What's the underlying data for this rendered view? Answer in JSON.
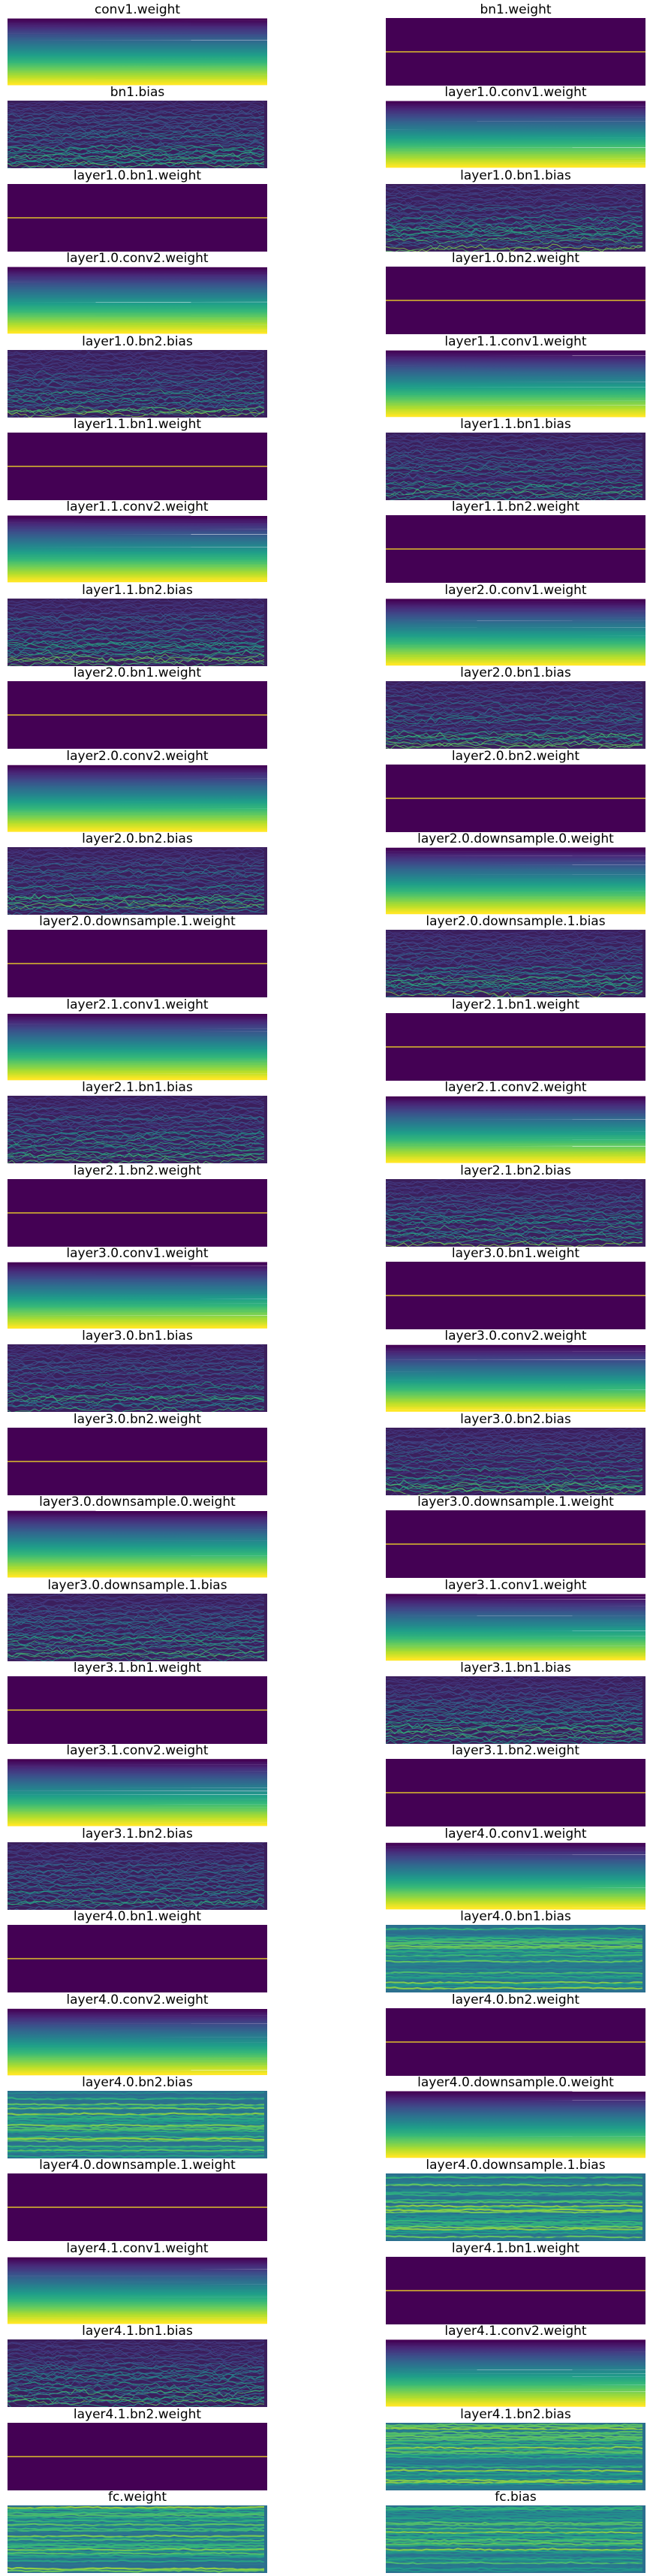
{
  "colors": {
    "flat_background": "#440154",
    "flat_line": "#fde725",
    "noise_background": "#3b1f5c",
    "colormap": "viridis"
  },
  "chart_data": [
    {
      "type": "line",
      "title": "conv1.weight",
      "pattern": "gradient"
    },
    {
      "type": "line",
      "title": "bn1.weight",
      "pattern": "flat"
    },
    {
      "type": "line",
      "title": "bn1.bias",
      "pattern": "noise"
    },
    {
      "type": "line",
      "title": "layer1.0.conv1.weight",
      "pattern": "gradient"
    },
    {
      "type": "line",
      "title": "layer1.0.bn1.weight",
      "pattern": "flat"
    },
    {
      "type": "line",
      "title": "layer1.0.bn1.bias",
      "pattern": "noise"
    },
    {
      "type": "line",
      "title": "layer1.0.conv2.weight",
      "pattern": "gradient"
    },
    {
      "type": "line",
      "title": "layer1.0.bn2.weight",
      "pattern": "flat"
    },
    {
      "type": "line",
      "title": "layer1.0.bn2.bias",
      "pattern": "noise"
    },
    {
      "type": "line",
      "title": "layer1.1.conv1.weight",
      "pattern": "gradient"
    },
    {
      "type": "line",
      "title": "layer1.1.bn1.weight",
      "pattern": "flat"
    },
    {
      "type": "line",
      "title": "layer1.1.bn1.bias",
      "pattern": "noise"
    },
    {
      "type": "line",
      "title": "layer1.1.conv2.weight",
      "pattern": "gradient"
    },
    {
      "type": "line",
      "title": "layer1.1.bn2.weight",
      "pattern": "flat"
    },
    {
      "type": "line",
      "title": "layer1.1.bn2.bias",
      "pattern": "noise"
    },
    {
      "type": "line",
      "title": "layer2.0.conv1.weight",
      "pattern": "gradient"
    },
    {
      "type": "line",
      "title": "layer2.0.bn1.weight",
      "pattern": "flat"
    },
    {
      "type": "line",
      "title": "layer2.0.bn1.bias",
      "pattern": "noise"
    },
    {
      "type": "line",
      "title": "layer2.0.conv2.weight",
      "pattern": "gradient"
    },
    {
      "type": "line",
      "title": "layer2.0.bn2.weight",
      "pattern": "flat"
    },
    {
      "type": "line",
      "title": "layer2.0.bn2.bias",
      "pattern": "noise"
    },
    {
      "type": "line",
      "title": "layer2.0.downsample.0.weight",
      "pattern": "gradient"
    },
    {
      "type": "line",
      "title": "layer2.0.downsample.1.weight",
      "pattern": "flat"
    },
    {
      "type": "line",
      "title": "layer2.0.downsample.1.bias",
      "pattern": "noise"
    },
    {
      "type": "line",
      "title": "layer2.1.conv1.weight",
      "pattern": "gradient"
    },
    {
      "type": "line",
      "title": "layer2.1.bn1.weight",
      "pattern": "flat"
    },
    {
      "type": "line",
      "title": "layer2.1.bn1.bias",
      "pattern": "noise"
    },
    {
      "type": "line",
      "title": "layer2.1.conv2.weight",
      "pattern": "gradient"
    },
    {
      "type": "line",
      "title": "layer2.1.bn2.weight",
      "pattern": "flat"
    },
    {
      "type": "line",
      "title": "layer2.1.bn2.bias",
      "pattern": "noise"
    },
    {
      "type": "line",
      "title": "layer3.0.conv1.weight",
      "pattern": "gradient"
    },
    {
      "type": "line",
      "title": "layer3.0.bn1.weight",
      "pattern": "flat"
    },
    {
      "type": "line",
      "title": "layer3.0.bn1.bias",
      "pattern": "noise"
    },
    {
      "type": "line",
      "title": "layer3.0.conv2.weight",
      "pattern": "gradient"
    },
    {
      "type": "line",
      "title": "layer3.0.bn2.weight",
      "pattern": "flat"
    },
    {
      "type": "line",
      "title": "layer3.0.bn2.bias",
      "pattern": "noise"
    },
    {
      "type": "line",
      "title": "layer3.0.downsample.0.weight",
      "pattern": "gradient"
    },
    {
      "type": "line",
      "title": "layer3.0.downsample.1.weight",
      "pattern": "flat"
    },
    {
      "type": "line",
      "title": "layer3.0.downsample.1.bias",
      "pattern": "noise"
    },
    {
      "type": "line",
      "title": "layer3.1.conv1.weight",
      "pattern": "gradient"
    },
    {
      "type": "line",
      "title": "layer3.1.bn1.weight",
      "pattern": "flat"
    },
    {
      "type": "line",
      "title": "layer3.1.bn1.bias",
      "pattern": "noise"
    },
    {
      "type": "line",
      "title": "layer3.1.conv2.weight",
      "pattern": "gradient"
    },
    {
      "type": "line",
      "title": "layer3.1.bn2.weight",
      "pattern": "flat"
    },
    {
      "type": "line",
      "title": "layer3.1.bn2.bias",
      "pattern": "noise"
    },
    {
      "type": "line",
      "title": "layer4.0.conv1.weight",
      "pattern": "gradient"
    },
    {
      "type": "line",
      "title": "layer4.0.bn1.weight",
      "pattern": "flat"
    },
    {
      "type": "line",
      "title": "layer4.0.bn1.bias",
      "pattern": "noise-green"
    },
    {
      "type": "line",
      "title": "layer4.0.conv2.weight",
      "pattern": "gradient"
    },
    {
      "type": "line",
      "title": "layer4.0.bn2.weight",
      "pattern": "flat"
    },
    {
      "type": "line",
      "title": "layer4.0.bn2.bias",
      "pattern": "noise-green"
    },
    {
      "type": "line",
      "title": "layer4.0.downsample.0.weight",
      "pattern": "gradient"
    },
    {
      "type": "line",
      "title": "layer4.0.downsample.1.weight",
      "pattern": "flat"
    },
    {
      "type": "line",
      "title": "layer4.0.downsample.1.bias",
      "pattern": "noise-green"
    },
    {
      "type": "line",
      "title": "layer4.1.conv1.weight",
      "pattern": "gradient"
    },
    {
      "type": "line",
      "title": "layer4.1.bn1.weight",
      "pattern": "flat"
    },
    {
      "type": "line",
      "title": "layer4.1.bn1.bias",
      "pattern": "noise"
    },
    {
      "type": "line",
      "title": "layer4.1.conv2.weight",
      "pattern": "gradient"
    },
    {
      "type": "line",
      "title": "layer4.1.bn2.weight",
      "pattern": "flat"
    },
    {
      "type": "line",
      "title": "layer4.1.bn2.bias",
      "pattern": "noise-green"
    },
    {
      "type": "line",
      "title": "fc.weight",
      "pattern": "noise-green"
    },
    {
      "type": "line",
      "title": "fc.bias",
      "pattern": "noise-green"
    }
  ]
}
